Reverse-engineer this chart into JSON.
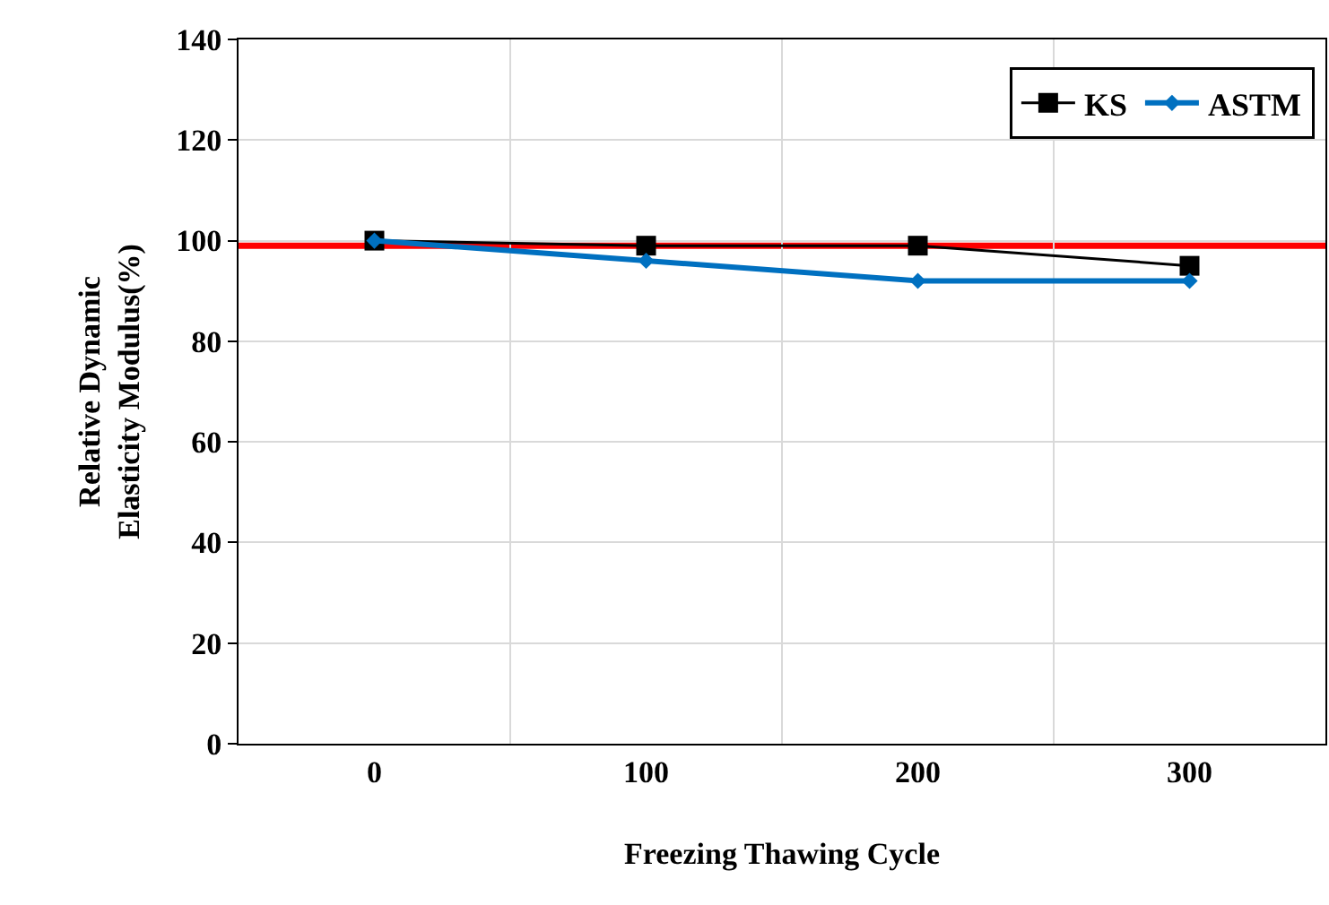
{
  "chart_data": {
    "type": "line",
    "xlabel": "Freezing Thawing Cycle",
    "ylabel": "Relative Dynamic\nElasticity Modulus(%)",
    "categories": [
      "0",
      "100",
      "200",
      "300"
    ],
    "series": [
      {
        "name": "KS",
        "color": "#000000",
        "values": [
          100,
          99,
          99,
          95
        ],
        "marker": "square"
      },
      {
        "name": "ASTM",
        "color": "#0070c0",
        "values": [
          100,
          96,
          92,
          92
        ],
        "marker": "diamond"
      }
    ],
    "ylim": [
      0,
      140
    ],
    "yticks": [
      0,
      20,
      40,
      60,
      80,
      100,
      120,
      140
    ],
    "ref_lines": [
      {
        "axis": "y",
        "value": 99,
        "color": "#ff0000"
      }
    ],
    "grid": true,
    "legend": "top right",
    "line_style": "solid"
  }
}
